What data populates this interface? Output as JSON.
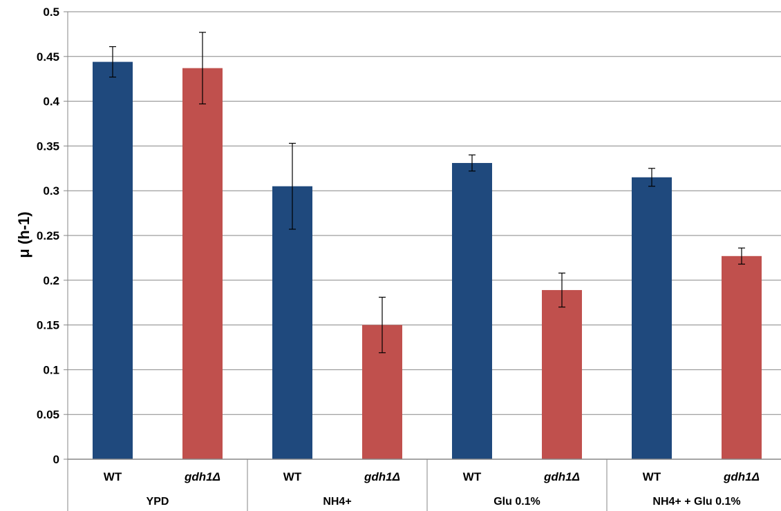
{
  "chart_data": {
    "type": "bar",
    "ylabel": "μ (h-1)",
    "ylim": [
      0,
      0.5
    ],
    "yticks": [
      "0",
      "0.05",
      "0.1",
      "0.15",
      "0.2",
      "0.25",
      "0.3",
      "0.35",
      "0.4",
      "0.45",
      "0.5"
    ],
    "grid": true,
    "groups": [
      {
        "label": "YPD",
        "bars": [
          {
            "label": "WT",
            "value": 0.444,
            "error": 0.017,
            "color": "#1F497D"
          },
          {
            "label": "gdh1Δ",
            "value": 0.437,
            "error": 0.04,
            "color": "#C0504D"
          }
        ]
      },
      {
        "label": "NH4+",
        "bars": [
          {
            "label": "WT",
            "value": 0.305,
            "error": 0.048,
            "color": "#1F497D"
          },
          {
            "label": "gdh1Δ",
            "value": 0.15,
            "error": 0.031,
            "color": "#C0504D"
          }
        ]
      },
      {
        "label": "Glu 0.1%",
        "bars": [
          {
            "label": "WT",
            "value": 0.331,
            "error": 0.009,
            "color": "#1F497D"
          },
          {
            "label": "gdh1Δ",
            "value": 0.189,
            "error": 0.019,
            "color": "#C0504D"
          }
        ]
      },
      {
        "label": "NH4+ + Glu 0.1%",
        "bars": [
          {
            "label": "WT",
            "value": 0.315,
            "error": 0.01,
            "color": "#1F497D"
          },
          {
            "label": "gdh1Δ",
            "value": 0.227,
            "error": 0.009,
            "color": "#C0504D"
          }
        ]
      }
    ]
  }
}
